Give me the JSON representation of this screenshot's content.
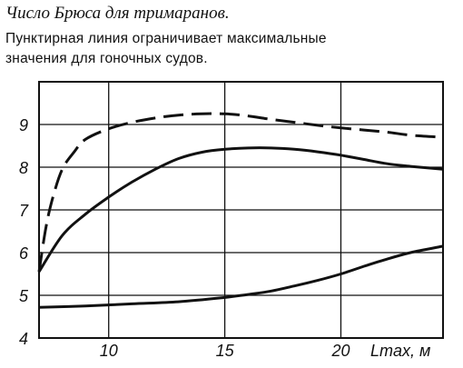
{
  "header": {
    "title": "Число Брюса для тримаранов.",
    "subtitle_line1": "Пунктирная линия ограничивает максимальные",
    "subtitle_line2": "значения для гоночных судов."
  },
  "chart_data": {
    "type": "line",
    "title": "Число Брюса для тримаранов.",
    "subtitle": "Пунктирная линия ограничивает максимальные значения для гоночных судов.",
    "xlabel": "Lmax, м",
    "ylabel": "",
    "xlim": [
      7,
      24.4
    ],
    "ylim": [
      4,
      10
    ],
    "x_ticks": [
      10,
      15,
      20
    ],
    "y_ticks": [
      4,
      5,
      6,
      7,
      8,
      9
    ],
    "grid": true,
    "series": [
      {
        "style": "dashed",
        "x": [
          7.0,
          7.3,
          7.6,
          8.0,
          8.5,
          9.0,
          10.0,
          11.0,
          12.0,
          13.0,
          14.0,
          15.0,
          16.0,
          17.0,
          18.0,
          19.0,
          20.0,
          21.0,
          22.0,
          23.0,
          24.4
        ],
        "y": [
          5.55,
          6.6,
          7.3,
          7.95,
          8.35,
          8.65,
          8.9,
          9.05,
          9.15,
          9.22,
          9.25,
          9.25,
          9.2,
          9.12,
          9.05,
          8.98,
          8.92,
          8.87,
          8.82,
          8.75,
          8.7
        ]
      },
      {
        "style": "solid",
        "x": [
          7.0,
          8.0,
          9.0,
          10.0,
          11.0,
          12.0,
          13.0,
          14.0,
          15.0,
          16.0,
          17.0,
          18.0,
          19.0,
          20.0,
          21.0,
          22.0,
          23.0,
          24.4
        ],
        "y": [
          5.55,
          6.4,
          6.9,
          7.3,
          7.65,
          7.95,
          8.2,
          8.35,
          8.42,
          8.45,
          8.45,
          8.42,
          8.36,
          8.28,
          8.18,
          8.08,
          8.02,
          7.95
        ]
      },
      {
        "style": "solid",
        "x": [
          7.0,
          9.0,
          11.0,
          13.0,
          15.0,
          16.0,
          17.0,
          18.0,
          19.0,
          20.0,
          21.0,
          22.0,
          23.0,
          24.4
        ],
        "y": [
          4.72,
          4.75,
          4.8,
          4.85,
          4.95,
          5.02,
          5.1,
          5.22,
          5.35,
          5.5,
          5.68,
          5.85,
          6.0,
          6.15
        ]
      }
    ]
  }
}
